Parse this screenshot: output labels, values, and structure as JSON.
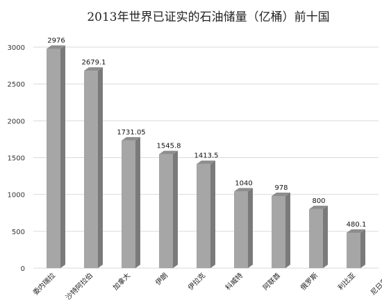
{
  "chart_data": {
    "type": "bar",
    "title": "2013年世界已证实的石油储量（亿桶）前十国",
    "xlabel": "",
    "ylabel": "",
    "categories": [
      "委内瑞拉",
      "沙特阿拉伯",
      "加拿大",
      "伊朗",
      "伊拉克",
      "科威特",
      "阿联酋",
      "俄罗斯",
      "利比亚",
      "尼日利亚"
    ],
    "values": [
      2976,
      2679.1,
      1731.05,
      1545.8,
      1413.5,
      1040,
      978,
      800,
      480.1,
      null
    ],
    "value_labels": [
      "2976",
      "2679.1",
      "1731.05",
      "1545.8",
      "1413.5",
      "1040",
      "978",
      "800",
      "480.1",
      ""
    ],
    "ylim": [
      0,
      3000
    ],
    "yticks": [
      "0",
      "500",
      "1000",
      "1500",
      "2000",
      "2500",
      "3000"
    ],
    "grid": true,
    "bar_color": "#a6a6a6"
  }
}
